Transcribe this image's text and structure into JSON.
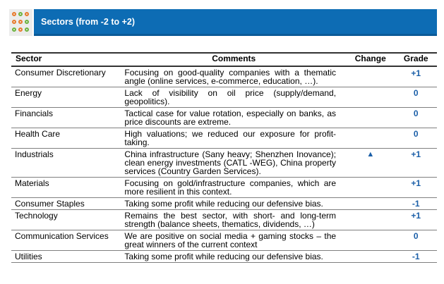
{
  "header": {
    "title": "Sectors  (from  -2 to  +2)"
  },
  "table": {
    "columns": [
      "Sector",
      "Comments",
      "Change",
      "Grade"
    ],
    "rows": [
      {
        "sector": "Consumer Discretionary",
        "comment": "Focusing on good-quality companies with a thematic angle (online services, e-commerce, education, …).",
        "change": "",
        "grade": "+1"
      },
      {
        "sector": "Energy",
        "comment": "Lack of visibility on oil price (supply/demand, geopolitics).",
        "change": "",
        "grade": "0"
      },
      {
        "sector": "Financials",
        "comment": "Tactical case for value rotation, especially on banks, as price discounts are extreme.",
        "change": "",
        "grade": "0"
      },
      {
        "sector": "Health Care",
        "comment": "High valuations; we reduced our exposure for profit-taking.",
        "change": "",
        "grade": "0"
      },
      {
        "sector": "Industrials",
        "comment": "China infrastructure (Sany heavy; Shenzhen Inovance); clean energy investments (CATL -WEG), China property services (Country Garden Services).",
        "change": "▲",
        "grade": "+1"
      },
      {
        "sector": "Materials",
        "comment": "Focusing on gold/infrastructure companies, which are more resilient in this context.",
        "change": "",
        "grade": "+1"
      },
      {
        "sector": "Consumer Staples",
        "comment": "Taking some profit while reducing our defensive bias.",
        "change": "",
        "grade": "-1"
      },
      {
        "sector": "Technology",
        "comment": "Remains the best sector, with short- and long-term strength (balance sheets, thematics, dividends, …)",
        "change": "",
        "grade": "+1"
      },
      {
        "sector": "Communication Services",
        "comment": "We are positive on social media + gaming stocks – the great winners of the current context",
        "change": "",
        "grade": "0"
      },
      {
        "sector": "Utilities",
        "comment": "Taking some profit while reducing our defensive bias.",
        "change": "",
        "grade": "-1"
      }
    ]
  }
}
